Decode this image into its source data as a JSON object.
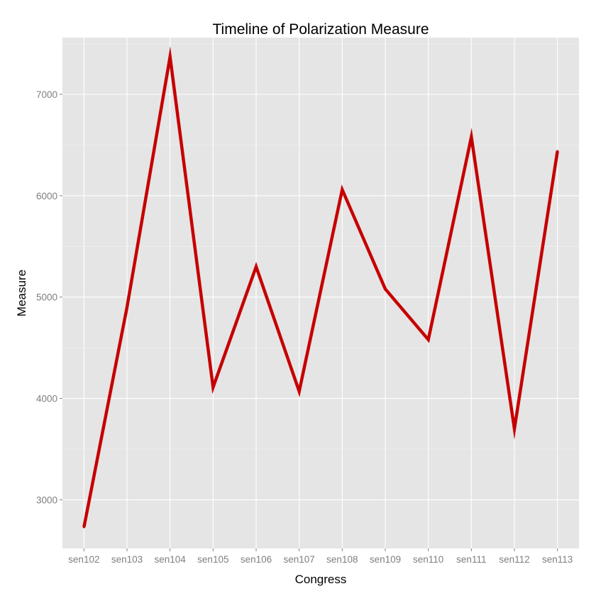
{
  "chart_data": {
    "type": "line",
    "title": "Timeline of Polarization Measure",
    "xlabel": "Congress",
    "ylabel": "Measure",
    "categories": [
      "sen102",
      "sen103",
      "sen104",
      "sen105",
      "sen106",
      "sen107",
      "sen108",
      "sen109",
      "sen110",
      "sen111",
      "sen112",
      "sen113"
    ],
    "series": [
      {
        "values": [
          2730,
          4900,
          7370,
          4110,
          5300,
          4070,
          6060,
          5080,
          4580,
          6580,
          3700,
          6440
        ],
        "color": "#cc0000"
      }
    ],
    "ylim": [
      2520,
      7560
    ],
    "yticks": [
      3000,
      4000,
      5000,
      6000,
      7000
    ],
    "ytick_labels": [
      "3000",
      "4000",
      "5000",
      "6000",
      "7000"
    ],
    "grid": true,
    "panel_background": "#e5e5e5",
    "legend": "none"
  }
}
